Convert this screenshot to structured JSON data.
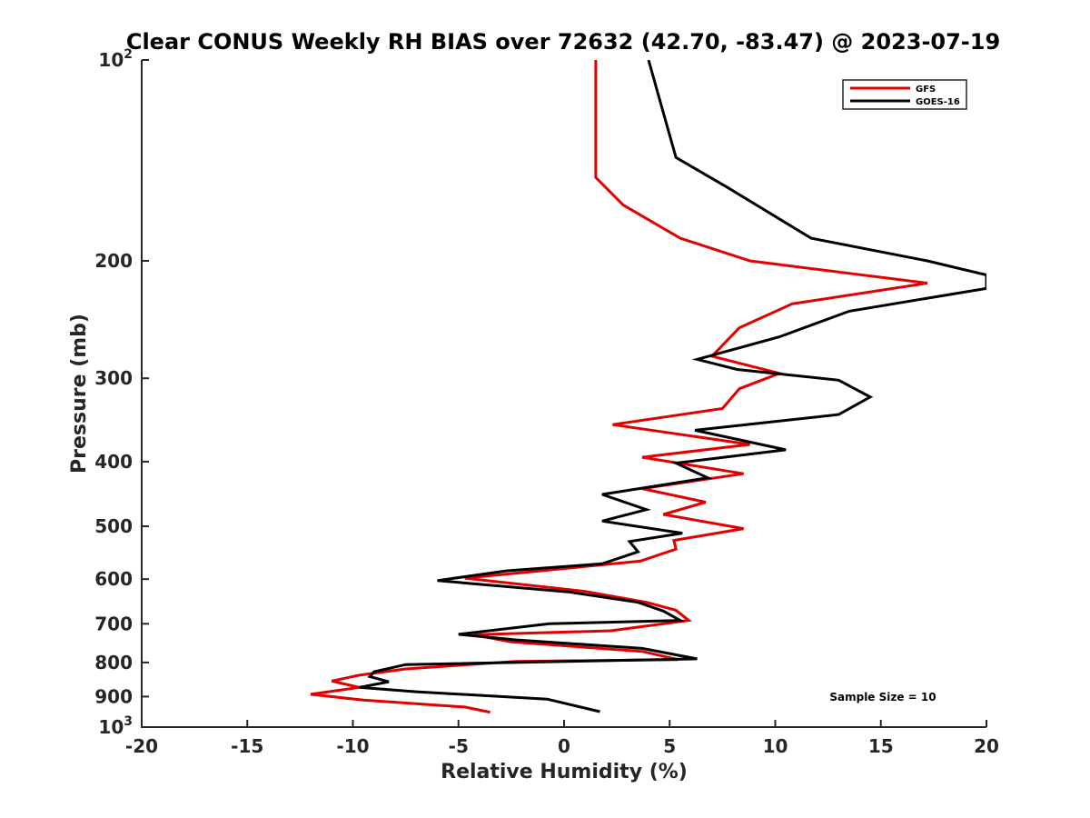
{
  "chart_data": {
    "type": "line",
    "title": "Clear CONUS Weekly RH BIAS over 72632 (42.70, -83.47) @ 2023-07-19",
    "xlabel": "Relative Humidity (%)",
    "ylabel": "Pressure (mb)",
    "xlim": [
      -20,
      20
    ],
    "ylim": [
      100,
      1000
    ],
    "y_scale": "log",
    "y_reversed": true,
    "x_ticks": [
      -20,
      -15,
      -10,
      -5,
      0,
      5,
      10,
      15,
      20
    ],
    "x_tick_labels": [
      "-20",
      "-15",
      "-10",
      "-5",
      "0",
      "5",
      "10",
      "15",
      "20"
    ],
    "y_ticks": [
      100,
      200,
      300,
      400,
      500,
      600,
      700,
      800,
      900,
      1000
    ],
    "y_tick_labels": [
      "10^2",
      "200",
      "300",
      "400",
      "500",
      "600",
      "700",
      "800",
      "900",
      "10^3"
    ],
    "grid": false,
    "legend_position": "top-right",
    "annotation": "Sample Size = 10",
    "series": [
      {
        "name": "GFS",
        "color": "#e00000",
        "x": [
          1.5,
          1.5,
          1.5,
          1.5,
          2.8,
          5.5,
          8.8,
          17.2,
          10.8,
          8.3,
          7.0,
          10.2,
          8.3,
          7.5,
          2.3,
          8.8,
          3.7,
          8.5,
          3.7,
          6.7,
          4.7,
          8.5,
          5.2,
          5.3,
          3.6,
          -4.7,
          1.0,
          3.9,
          5.3,
          5.9,
          2.2,
          -4.3,
          -2.5,
          3.7,
          5.4,
          -2.3,
          -7.5,
          -9.7,
          -11.0,
          -9.7,
          -12.0,
          -9.5,
          -4.7,
          -3.5
        ],
        "y": [
          100,
          120,
          140,
          150,
          165,
          185,
          200,
          216,
          232,
          252,
          278,
          295,
          311,
          333,
          352,
          377,
          394,
          417,
          439,
          460,
          480,
          504,
          525,
          541,
          564,
          598,
          626,
          650,
          668,
          692,
          717,
          727,
          745,
          770,
          792,
          797,
          818,
          836,
          853,
          872,
          893,
          911,
          933,
          950
        ]
      },
      {
        "name": "GOES-16",
        "color": "#000000",
        "x": [
          4.0,
          4.7,
          5.3,
          7.7,
          11.7,
          17.2,
          20.0,
          20.0,
          13.5,
          10.2,
          6.3,
          8.2,
          13.0,
          14.5,
          13.0,
          6.2,
          10.5,
          5.3,
          6.8,
          1.8,
          3.9,
          1.8,
          5.6,
          3.1,
          3.5,
          1.8,
          -2.7,
          -6.0,
          0.2,
          3.5,
          4.7,
          5.5,
          -0.7,
          -5.0,
          -2.3,
          3.7,
          6.3,
          -7.5,
          -9.0,
          -9.2,
          -8.3,
          -9.7,
          -7.0,
          -0.8,
          1.7
        ],
        "y": [
          100,
          120,
          140,
          155,
          185,
          200,
          210,
          220,
          238,
          260,
          281,
          291,
          302,
          320,
          340,
          359,
          384,
          402,
          423,
          448,
          472,
          491,
          512,
          527,
          546,
          569,
          583,
          603,
          627,
          650,
          670,
          692,
          700,
          726,
          740,
          762,
          790,
          806,
          826,
          840,
          855,
          872,
          885,
          908,
          948
        ]
      }
    ]
  }
}
